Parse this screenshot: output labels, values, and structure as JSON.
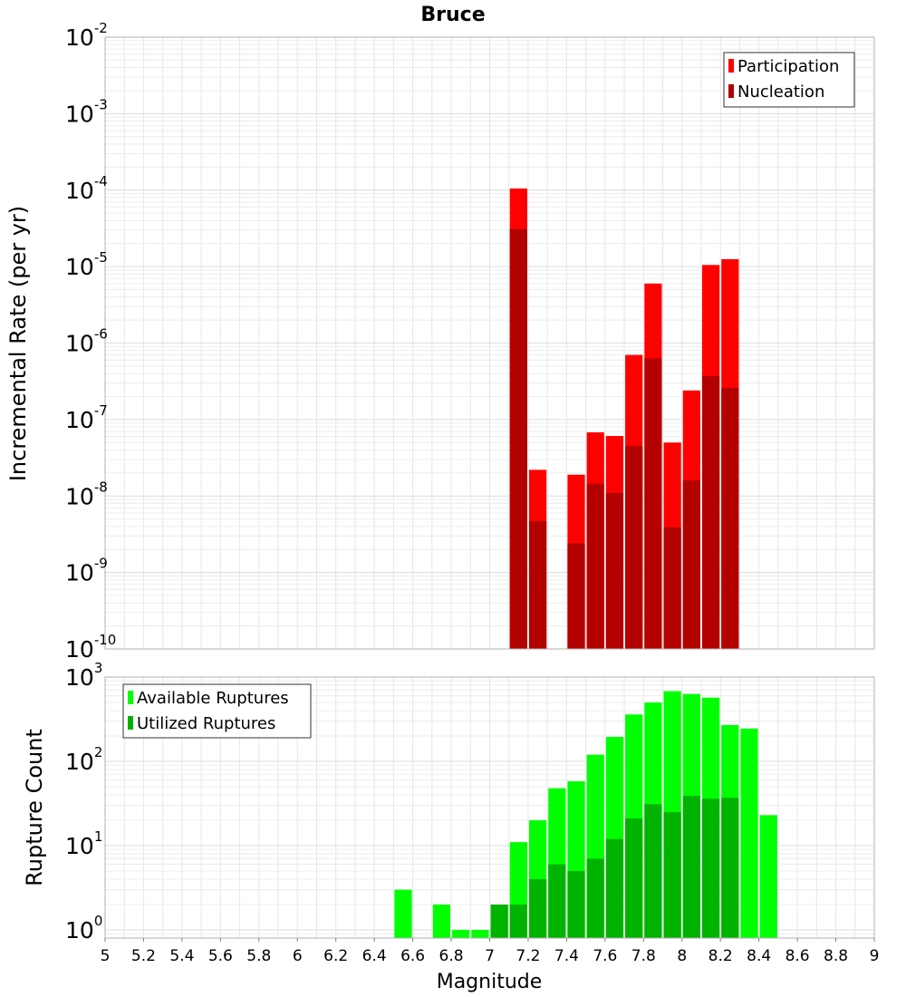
{
  "chart_data": [
    {
      "type": "bar",
      "title": "Bruce",
      "ylabel": "Incremental Rate (per yr)",
      "xlim": [
        5,
        9
      ],
      "ylim": [
        1e-10,
        0.01
      ],
      "yscale": "log",
      "bin_width": 0.1,
      "y_ticks": [
        {
          "base": "10",
          "exp": "-10"
        },
        {
          "base": "10",
          "exp": "-9"
        },
        {
          "base": "10",
          "exp": "-8"
        },
        {
          "base": "10",
          "exp": "-7"
        },
        {
          "base": "10",
          "exp": "-6"
        },
        {
          "base": "10",
          "exp": "-5"
        },
        {
          "base": "10",
          "exp": "-4"
        },
        {
          "base": "10",
          "exp": "-3"
        },
        {
          "base": "10",
          "exp": "-2"
        }
      ],
      "legend": {
        "position": "top-right",
        "items": [
          "Participation",
          "Nucleation"
        ]
      },
      "series": [
        {
          "name": "Participation",
          "color": "#ff0000",
          "x": [
            7.15,
            7.25,
            7.45,
            7.55,
            7.65,
            7.75,
            7.85,
            7.95,
            8.05,
            8.15,
            8.25
          ],
          "values": [
            0.000105,
            2.2e-08,
            1.9e-08,
            6.8e-08,
            6.1e-08,
            7e-07,
            6e-06,
            5e-08,
            2.4e-07,
            1.05e-05,
            1.25e-05
          ]
        },
        {
          "name": "Nucleation",
          "color": "#b30000",
          "x": [
            7.15,
            7.25,
            7.45,
            7.55,
            7.65,
            7.75,
            7.85,
            7.95,
            8.05,
            8.15,
            8.25
          ],
          "values": [
            3.1e-05,
            4.7e-09,
            2.4e-09,
            1.45e-08,
            1.1e-08,
            4.5e-08,
            6.3e-07,
            3.9e-09,
            1.6e-08,
            3.7e-07,
            2.6e-07
          ]
        }
      ]
    },
    {
      "type": "bar",
      "xlabel": "Magnitude",
      "ylabel": "Rupture Count",
      "xlim": [
        5,
        9
      ],
      "ylim": [
        0.8,
        1000
      ],
      "yscale": "log",
      "bin_width": 0.1,
      "x_ticks": [
        "5",
        "5.2",
        "5.4",
        "5.6",
        "5.8",
        "6",
        "6.2",
        "6.4",
        "6.6",
        "6.8",
        "7",
        "7.2",
        "7.4",
        "7.6",
        "7.8",
        "8",
        "8.2",
        "8.4",
        "8.6",
        "8.8",
        "9"
      ],
      "y_ticks": [
        {
          "base": "10",
          "exp": "0"
        },
        {
          "base": "10",
          "exp": "1"
        },
        {
          "base": "10",
          "exp": "2"
        },
        {
          "base": "10",
          "exp": "3"
        }
      ],
      "legend": {
        "position": "top-left",
        "items": [
          "Available Ruptures",
          "Utilized Ruptures"
        ]
      },
      "series": [
        {
          "name": "Available Ruptures",
          "color": "#00ff00",
          "x": [
            6.55,
            6.75,
            6.85,
            6.95,
            7.05,
            7.15,
            7.25,
            7.35,
            7.45,
            7.55,
            7.65,
            7.75,
            7.85,
            7.95,
            8.05,
            8.15,
            8.25,
            8.35,
            8.45
          ],
          "values": [
            3,
            2,
            1,
            1,
            2,
            11,
            20,
            48,
            58,
            120,
            195,
            360,
            500,
            680,
            630,
            570,
            270,
            245,
            23
          ]
        },
        {
          "name": "Utilized Ruptures",
          "color": "#00b300",
          "x": [
            7.05,
            7.15,
            7.25,
            7.35,
            7.45,
            7.55,
            7.65,
            7.75,
            7.85,
            7.95,
            8.05,
            8.15,
            8.25
          ],
          "values": [
            2,
            2,
            4,
            6,
            5,
            7,
            12,
            21,
            31,
            25,
            39,
            36,
            37
          ]
        }
      ]
    }
  ]
}
